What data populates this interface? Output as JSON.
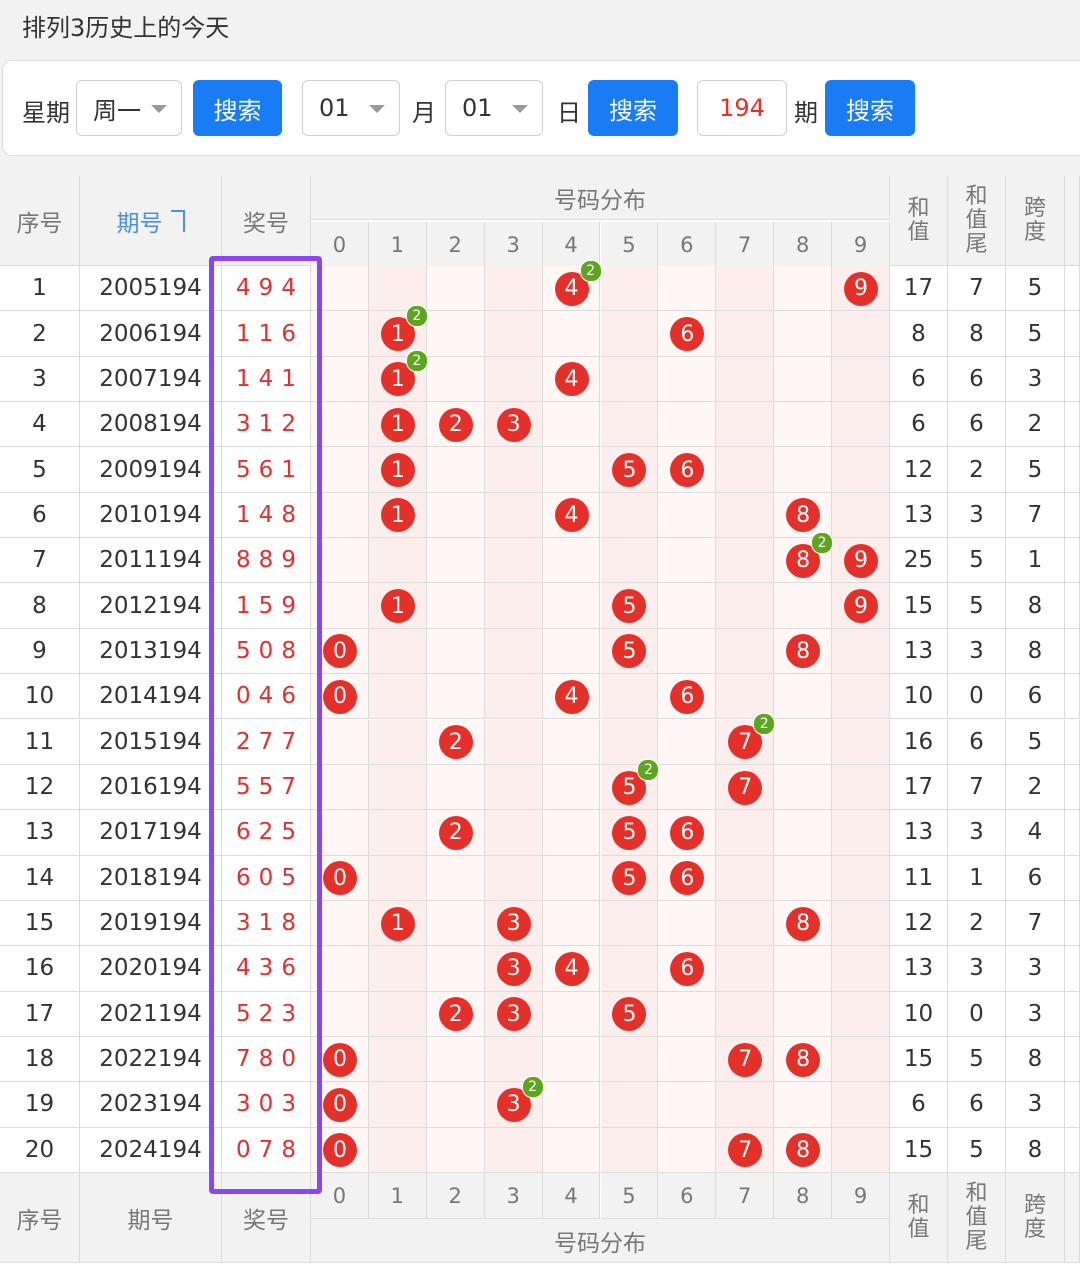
{
  "header": {
    "title": "排列3历史上的今天"
  },
  "filters": {
    "weekday_label": "星期",
    "weekday": "周一",
    "search_weekday": "搜索",
    "month": "01",
    "month_label": "月",
    "day": "01",
    "day_label": "日",
    "search_date": "搜索",
    "period": "194",
    "period_label": "期",
    "search_period": "搜索"
  },
  "table": {
    "head": {
      "index": "序号",
      "issue": "期号",
      "number": "奖号",
      "distribution": "号码分布",
      "digits": [
        "0",
        "1",
        "2",
        "3",
        "4",
        "5",
        "6",
        "7",
        "8",
        "9"
      ],
      "sum": "和值",
      "sum_tail": "和值尾",
      "span": "跨度"
    },
    "rows": [
      {
        "index": "1",
        "issue": "2005194",
        "number": "494",
        "balls": [
          {
            "digit": "4",
            "count": "2"
          },
          {
            "digit": "9"
          }
        ],
        "sum": "17",
        "sum_tail": "7",
        "span": "5"
      },
      {
        "index": "2",
        "issue": "2006194",
        "number": "116",
        "balls": [
          {
            "digit": "1",
            "count": "2"
          },
          {
            "digit": "6"
          }
        ],
        "sum": "8",
        "sum_tail": "8",
        "span": "5"
      },
      {
        "index": "3",
        "issue": "2007194",
        "number": "141",
        "balls": [
          {
            "digit": "1",
            "count": "2"
          },
          {
            "digit": "4"
          }
        ],
        "sum": "6",
        "sum_tail": "6",
        "span": "3"
      },
      {
        "index": "4",
        "issue": "2008194",
        "number": "312",
        "balls": [
          {
            "digit": "1"
          },
          {
            "digit": "2"
          },
          {
            "digit": "3"
          }
        ],
        "sum": "6",
        "sum_tail": "6",
        "span": "2"
      },
      {
        "index": "5",
        "issue": "2009194",
        "number": "561",
        "balls": [
          {
            "digit": "1"
          },
          {
            "digit": "5"
          },
          {
            "digit": "6"
          }
        ],
        "sum": "12",
        "sum_tail": "2",
        "span": "5"
      },
      {
        "index": "6",
        "issue": "2010194",
        "number": "148",
        "balls": [
          {
            "digit": "1"
          },
          {
            "digit": "4"
          },
          {
            "digit": "8"
          }
        ],
        "sum": "13",
        "sum_tail": "3",
        "span": "7"
      },
      {
        "index": "7",
        "issue": "2011194",
        "number": "889",
        "balls": [
          {
            "digit": "8",
            "count": "2"
          },
          {
            "digit": "9"
          }
        ],
        "sum": "25",
        "sum_tail": "5",
        "span": "1"
      },
      {
        "index": "8",
        "issue": "2012194",
        "number": "159",
        "balls": [
          {
            "digit": "1"
          },
          {
            "digit": "5"
          },
          {
            "digit": "9"
          }
        ],
        "sum": "15",
        "sum_tail": "5",
        "span": "8"
      },
      {
        "index": "9",
        "issue": "2013194",
        "number": "508",
        "balls": [
          {
            "digit": "0"
          },
          {
            "digit": "5"
          },
          {
            "digit": "8"
          }
        ],
        "sum": "13",
        "sum_tail": "3",
        "span": "8"
      },
      {
        "index": "10",
        "issue": "2014194",
        "number": "046",
        "balls": [
          {
            "digit": "0"
          },
          {
            "digit": "4"
          },
          {
            "digit": "6"
          }
        ],
        "sum": "10",
        "sum_tail": "0",
        "span": "6"
      },
      {
        "index": "11",
        "issue": "2015194",
        "number": "277",
        "balls": [
          {
            "digit": "2"
          },
          {
            "digit": "7",
            "count": "2"
          }
        ],
        "sum": "16",
        "sum_tail": "6",
        "span": "5"
      },
      {
        "index": "12",
        "issue": "2016194",
        "number": "557",
        "balls": [
          {
            "digit": "5",
            "count": "2"
          },
          {
            "digit": "7"
          }
        ],
        "sum": "17",
        "sum_tail": "7",
        "span": "2"
      },
      {
        "index": "13",
        "issue": "2017194",
        "number": "625",
        "balls": [
          {
            "digit": "2"
          },
          {
            "digit": "5"
          },
          {
            "digit": "6"
          }
        ],
        "sum": "13",
        "sum_tail": "3",
        "span": "4"
      },
      {
        "index": "14",
        "issue": "2018194",
        "number": "605",
        "balls": [
          {
            "digit": "0"
          },
          {
            "digit": "5"
          },
          {
            "digit": "6"
          }
        ],
        "sum": "11",
        "sum_tail": "1",
        "span": "6"
      },
      {
        "index": "15",
        "issue": "2019194",
        "number": "318",
        "balls": [
          {
            "digit": "1"
          },
          {
            "digit": "3"
          },
          {
            "digit": "8"
          }
        ],
        "sum": "12",
        "sum_tail": "2",
        "span": "7"
      },
      {
        "index": "16",
        "issue": "2020194",
        "number": "436",
        "balls": [
          {
            "digit": "3"
          },
          {
            "digit": "4"
          },
          {
            "digit": "6"
          }
        ],
        "sum": "13",
        "sum_tail": "3",
        "span": "3"
      },
      {
        "index": "17",
        "issue": "2021194",
        "number": "523",
        "balls": [
          {
            "digit": "2"
          },
          {
            "digit": "3"
          },
          {
            "digit": "5"
          }
        ],
        "sum": "10",
        "sum_tail": "0",
        "span": "3"
      },
      {
        "index": "18",
        "issue": "2022194",
        "number": "780",
        "balls": [
          {
            "digit": "0"
          },
          {
            "digit": "7"
          },
          {
            "digit": "8"
          }
        ],
        "sum": "15",
        "sum_tail": "5",
        "span": "8"
      },
      {
        "index": "19",
        "issue": "2023194",
        "number": "303",
        "balls": [
          {
            "digit": "0"
          },
          {
            "digit": "3",
            "count": "2"
          }
        ],
        "sum": "6",
        "sum_tail": "6",
        "span": "3"
      },
      {
        "index": "20",
        "issue": "2024194",
        "number": "078",
        "balls": [
          {
            "digit": "0"
          },
          {
            "digit": "7"
          },
          {
            "digit": "8"
          }
        ],
        "sum": "15",
        "sum_tail": "5",
        "span": "8"
      }
    ]
  }
}
